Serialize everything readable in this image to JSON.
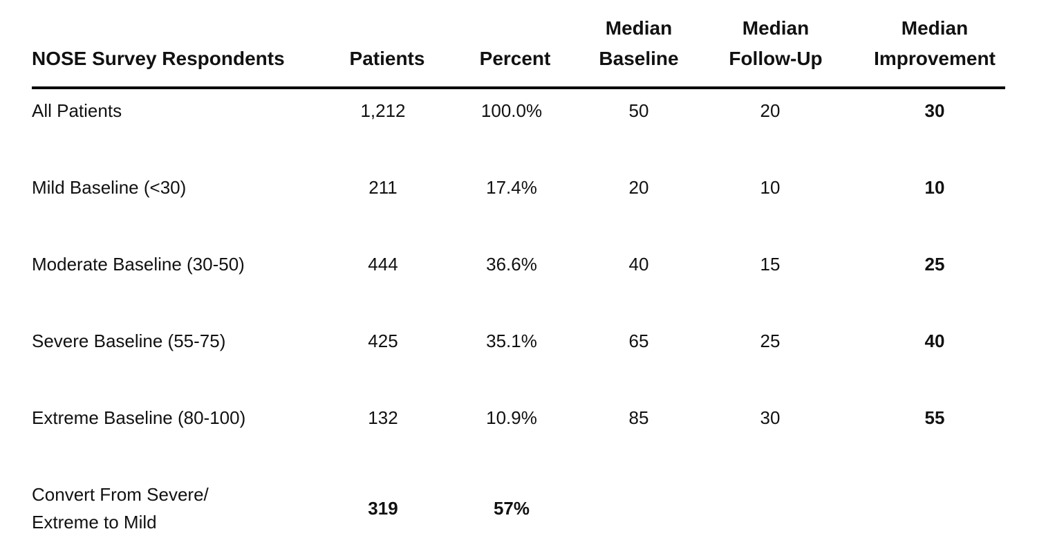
{
  "table": {
    "headers": {
      "label": "NOSE Survey Respondents",
      "patients": "Patients",
      "percent": "Percent",
      "baseline": [
        "Median",
        "Baseline"
      ],
      "followup": [
        "Median",
        "Follow-Up"
      ],
      "improvement": [
        "Median",
        "Improvement"
      ]
    },
    "rows": [
      {
        "label": "All Patients",
        "patients": "1,212",
        "percent": "100.0%",
        "baseline": "50",
        "followup": "20",
        "improvement": "30"
      },
      {
        "label": "Mild Baseline (<30)",
        "patients": "211",
        "percent": "17.4%",
        "baseline": "20",
        "followup": "10",
        "improvement": "10"
      },
      {
        "label": "Moderate Baseline (30-50)",
        "patients": "444",
        "percent": "36.6%",
        "baseline": "40",
        "followup": "15",
        "improvement": "25"
      },
      {
        "label": "Severe Baseline (55-75)",
        "patients": "425",
        "percent": "35.1%",
        "baseline": "65",
        "followup": "25",
        "improvement": "40"
      },
      {
        "label": "Extreme Baseline (80-100)",
        "patients": "132",
        "percent": "10.9%",
        "baseline": "85",
        "followup": "30",
        "improvement": "55"
      }
    ],
    "final_row": {
      "label_lines": [
        "Convert From Severe/",
        "Extreme to Mild"
      ],
      "patients": "319",
      "percent": "57%"
    }
  }
}
